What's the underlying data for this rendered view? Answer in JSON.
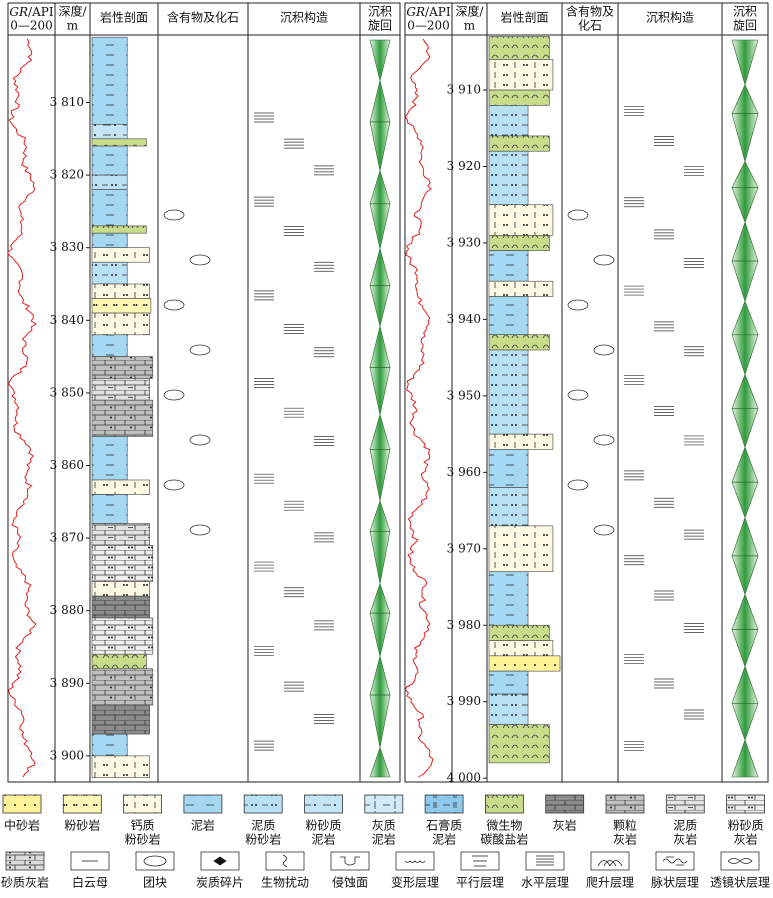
{
  "panels": [
    {
      "header": {
        "gr": "GR",
        "api": "/API",
        "range": "0—200",
        "depth": [
          "深度/",
          "m"
        ],
        "litho": "岩性剖面",
        "contents": [
          "含有物及化石"
        ],
        "structures": "沉积构造",
        "cycle": [
          "沉积",
          "旋回"
        ]
      },
      "ylim": [
        3800.7,
        3903.6
      ],
      "ticks": [
        {
          "value": 3810,
          "label": "3 810"
        },
        {
          "value": 3820,
          "label": "3 820"
        },
        {
          "value": 3830,
          "label": "3 830"
        },
        {
          "value": 3840,
          "label": "3 840"
        },
        {
          "value": 3850,
          "label": "3 850"
        },
        {
          "value": 3860,
          "label": "3 860"
        },
        {
          "value": 3870,
          "label": "3 870"
        },
        {
          "value": 3880,
          "label": "3 880"
        },
        {
          "value": 3890,
          "label": "3 890"
        },
        {
          "value": 3900,
          "label": "3 900"
        }
      ],
      "layers": [
        {
          "from": 3801,
          "to": 3813,
          "rock": 3
        },
        {
          "from": 3813,
          "to": 3815,
          "rock": 5
        },
        {
          "from": 3815,
          "to": 3816,
          "rock": 8
        },
        {
          "from": 3816,
          "to": 3820,
          "rock": 3
        },
        {
          "from": 3820,
          "to": 3822,
          "rock": 4
        },
        {
          "from": 3822,
          "to": 3827,
          "rock": 3
        },
        {
          "from": 3827,
          "to": 3828,
          "rock": 8
        },
        {
          "from": 3828,
          "to": 3830,
          "rock": 3
        },
        {
          "from": 3830,
          "to": 3832,
          "rock": 2
        },
        {
          "from": 3832,
          "to": 3835,
          "rock": 4
        },
        {
          "from": 3835,
          "to": 3837,
          "rock": 2
        },
        {
          "from": 3837,
          "to": 3839,
          "rock": 1
        },
        {
          "from": 3839,
          "to": 3842,
          "rock": 2
        },
        {
          "from": 3842,
          "to": 3845,
          "rock": 3
        },
        {
          "from": 3845,
          "to": 3848,
          "rock": 10
        },
        {
          "from": 3848,
          "to": 3851,
          "rock": 11
        },
        {
          "from": 3851,
          "to": 3856,
          "rock": 10
        },
        {
          "from": 3856,
          "to": 3862,
          "rock": 3
        },
        {
          "from": 3862,
          "to": 3864,
          "rock": 2
        },
        {
          "from": 3864,
          "to": 3868,
          "rock": 3
        },
        {
          "from": 3868,
          "to": 3871,
          "rock": 11
        },
        {
          "from": 3871,
          "to": 3876,
          "rock": 12
        },
        {
          "from": 3876,
          "to": 3878,
          "rock": 2
        },
        {
          "from": 3878,
          "to": 3881,
          "rock": 9
        },
        {
          "from": 3881,
          "to": 3886,
          "rock": 12
        },
        {
          "from": 3886,
          "to": 3888,
          "rock": 8
        },
        {
          "from": 3888,
          "to": 3893,
          "rock": 10
        },
        {
          "from": 3893,
          "to": 3897,
          "rock": 9
        },
        {
          "from": 3897,
          "to": 3900,
          "rock": 3
        },
        {
          "from": 3900,
          "to": 3903,
          "rock": 2
        }
      ]
    },
    {
      "header": {
        "gr": "GR",
        "api": "/API",
        "range": "0—200",
        "depth": [
          "深度/",
          "m"
        ],
        "litho": "岩性剖面",
        "contents": [
          "含有物及",
          "化石"
        ],
        "structures": "沉积构造",
        "cycle": [
          "沉积",
          "旋回"
        ]
      },
      "ylim": [
        3902.8,
        4000.5
      ],
      "ticks": [
        {
          "value": 3910,
          "label": "3 910"
        },
        {
          "value": 3920,
          "label": "3 920"
        },
        {
          "value": 3930,
          "label": "3 930"
        },
        {
          "value": 3940,
          "label": "3 940"
        },
        {
          "value": 3950,
          "label": "3 950"
        },
        {
          "value": 3960,
          "label": "3 960"
        },
        {
          "value": 3970,
          "label": "3 970"
        },
        {
          "value": 3980,
          "label": "3 980"
        },
        {
          "value": 3990,
          "label": "3 990"
        },
        {
          "value": 4000,
          "label": "4 000"
        }
      ],
      "layers": [
        {
          "from": 3903,
          "to": 3906,
          "rock": 8
        },
        {
          "from": 3906,
          "to": 3910,
          "rock": 2
        },
        {
          "from": 3910,
          "to": 3912,
          "rock": 8
        },
        {
          "from": 3912,
          "to": 3916,
          "rock": 4
        },
        {
          "from": 3916,
          "to": 3918,
          "rock": 8
        },
        {
          "from": 3918,
          "to": 3925,
          "rock": 4
        },
        {
          "from": 3925,
          "to": 3929,
          "rock": 2
        },
        {
          "from": 3929,
          "to": 3931,
          "rock": 8
        },
        {
          "from": 3931,
          "to": 3935,
          "rock": 3
        },
        {
          "from": 3935,
          "to": 3937,
          "rock": 2
        },
        {
          "from": 3937,
          "to": 3942,
          "rock": 3
        },
        {
          "from": 3942,
          "to": 3944,
          "rock": 8
        },
        {
          "from": 3944,
          "to": 3955,
          "rock": 4
        },
        {
          "from": 3955,
          "to": 3957,
          "rock": 2
        },
        {
          "from": 3957,
          "to": 3962,
          "rock": 3
        },
        {
          "from": 3962,
          "to": 3967,
          "rock": 4
        },
        {
          "from": 3967,
          "to": 3973,
          "rock": 2
        },
        {
          "from": 3973,
          "to": 3980,
          "rock": 3
        },
        {
          "from": 3980,
          "to": 3982,
          "rock": 8
        },
        {
          "from": 3982,
          "to": 3984,
          "rock": 2
        },
        {
          "from": 3984,
          "to": 3986,
          "rock": 0
        },
        {
          "from": 3986,
          "to": 3989,
          "rock": 3
        },
        {
          "from": 3989,
          "to": 3993,
          "rock": 4
        },
        {
          "from": 3993,
          "to": 3998,
          "rock": 8
        }
      ]
    }
  ],
  "legend": [
    {
      "label": [
        "中砂岩"
      ],
      "color": "#fff39a"
    },
    {
      "label": [
        "粉砂岩"
      ],
      "color": "#fff7b5"
    },
    {
      "label": [
        "钙质",
        "粉砂岩"
      ],
      "color": "#fdf9e3"
    },
    {
      "label": [
        "泥岩"
      ],
      "color": "#a5d8f3"
    },
    {
      "label": [
        "泥质",
        "粉砂岩"
      ],
      "color": "#b9e1f5"
    },
    {
      "label": [
        "粉砂质",
        "泥岩"
      ],
      "color": "#c3e5f7"
    },
    {
      "label": [
        "灰质",
        "泥岩"
      ],
      "color": "#d3ebf8"
    },
    {
      "label": [
        "石膏质",
        "泥岩"
      ],
      "color": "#8cc9ec"
    },
    {
      "label": [
        "微生物",
        "碳酸盐岩"
      ],
      "color": "#c8dc8c"
    },
    {
      "label": [
        "灰岩"
      ],
      "color": "#8c8c8c"
    },
    {
      "label": [
        "颗粒",
        "灰岩"
      ],
      "color": "#c0c0c0"
    },
    {
      "label": [
        "泥质",
        "灰岩"
      ],
      "color": "#e2e2e2"
    },
    {
      "label": [
        "粉砂质",
        "灰岩"
      ],
      "color": "#efefef"
    },
    {
      "label": [
        "砂质灰岩"
      ],
      "color": "#dcdcdc"
    },
    {
      "label": [
        "白云母"
      ],
      "color": "#ffffff"
    },
    {
      "label": [
        "团块"
      ],
      "color": "#ffffff"
    },
    {
      "label": [
        "炭质碎片"
      ],
      "color": "#ffffff"
    },
    {
      "label": [
        "生物扰动"
      ],
      "color": "#ffffff"
    },
    {
      "label": [
        "侵蚀面"
      ],
      "color": "#ffffff"
    },
    {
      "label": [
        "变形层理"
      ],
      "color": "#ffffff"
    },
    {
      "label": [
        "平行层理"
      ],
      "color": "#ffffff"
    },
    {
      "label": [
        "水平层理"
      ],
      "color": "#ffffff"
    },
    {
      "label": [
        "爬升层理"
      ],
      "color": "#ffffff"
    },
    {
      "label": [
        "脉状层理"
      ],
      "color": "#ffffff"
    },
    {
      "label": [
        "透镜状层理"
      ],
      "color": "#ffffff"
    }
  ]
}
